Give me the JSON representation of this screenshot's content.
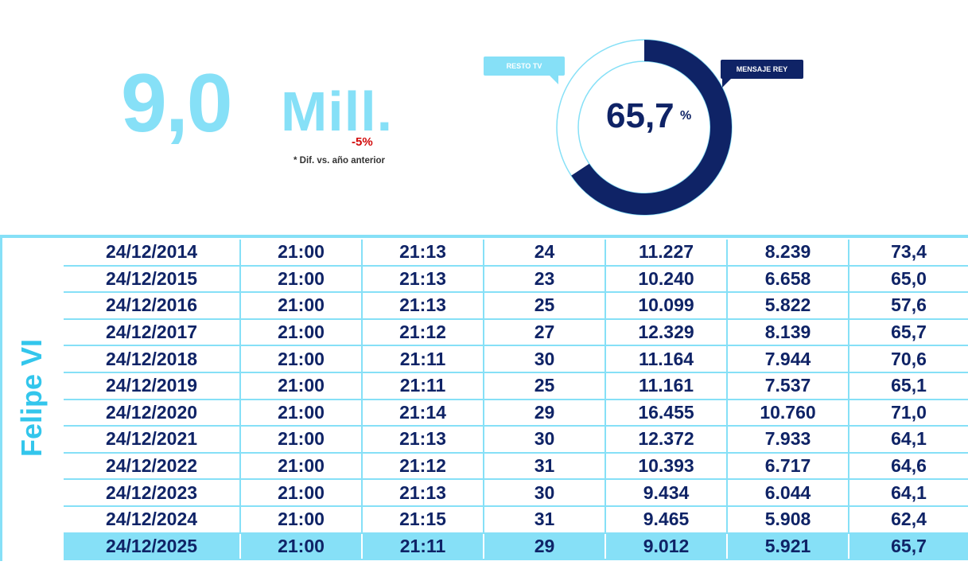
{
  "headline": {
    "value": "9,0",
    "unit": "Mill.",
    "diff": "-5%",
    "diff_note": "* Dif. vs. año anterior"
  },
  "share": {
    "value": "65,7",
    "unit": "%",
    "fraction": 0.657,
    "label_rey": "MENSAJE REY",
    "label_resto": "RESTO TV"
  },
  "colors": {
    "light_blue": "#86e0f7",
    "navy": "#0f2366",
    "red": "#d20a0a",
    "label_blue": "#33c6ec"
  },
  "side_label": "Felipe VI",
  "table": {
    "rows": [
      [
        "24/12/2014",
        "21:00",
        "21:13",
        "24",
        "11.227",
        "8.239",
        "73,4"
      ],
      [
        "24/12/2015",
        "21:00",
        "21:13",
        "23",
        "10.240",
        "6.658",
        "65,0"
      ],
      [
        "24/12/2016",
        "21:00",
        "21:13",
        "25",
        "10.099",
        "5.822",
        "57,6"
      ],
      [
        "24/12/2017",
        "21:00",
        "21:12",
        "27",
        "12.329",
        "8.139",
        "65,7"
      ],
      [
        "24/12/2018",
        "21:00",
        "21:11",
        "30",
        "11.164",
        "7.944",
        "70,6"
      ],
      [
        "24/12/2019",
        "21:00",
        "21:11",
        "25",
        "11.161",
        "7.537",
        "65,1"
      ],
      [
        "24/12/2020",
        "21:00",
        "21:14",
        "29",
        "16.455",
        "10.760",
        "71,0"
      ],
      [
        "24/12/2021",
        "21:00",
        "21:13",
        "30",
        "12.372",
        "7.933",
        "64,1"
      ],
      [
        "24/12/2022",
        "21:00",
        "21:12",
        "31",
        "10.393",
        "6.717",
        "64,6"
      ],
      [
        "24/12/2023",
        "21:00",
        "21:13",
        "30",
        "9.434",
        "6.044",
        "64,1"
      ],
      [
        "24/12/2024",
        "21:00",
        "21:15",
        "31",
        "9.465",
        "5.908",
        "62,4"
      ],
      [
        "24/12/2025",
        "21:00",
        "21:11",
        "29",
        "9.012",
        "5.921",
        "65,7"
      ]
    ],
    "highlight_row": 11
  }
}
